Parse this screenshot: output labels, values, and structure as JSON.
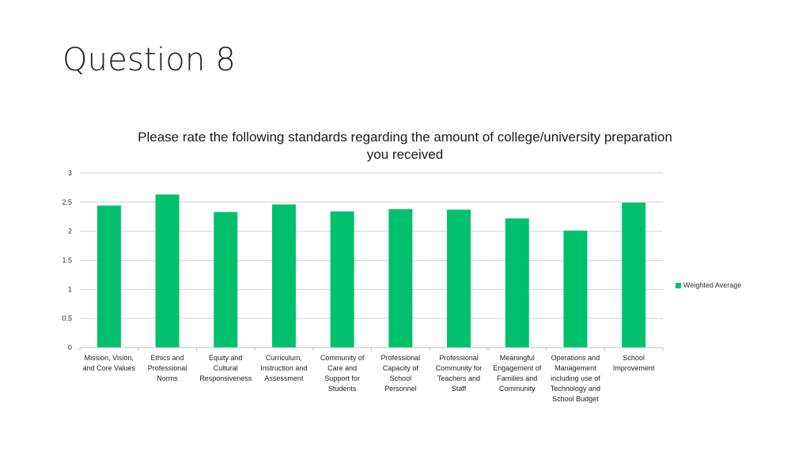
{
  "slide": {
    "title": "Question 8"
  },
  "chart_data": {
    "type": "bar",
    "title": "Please rate the following standards regarding the amount of college/university preparation you received",
    "xlabel": "",
    "ylabel": "",
    "ylim": [
      0,
      3
    ],
    "yticks": [
      "0",
      "0.5",
      "1",
      "1.5",
      "2",
      "2.5",
      "3"
    ],
    "grid": true,
    "legend_position": "right",
    "bar_color": "#00c06e",
    "categories": [
      "Mission, Vision,\nand Core Values",
      "Ethics and\nProfessional\nNorms",
      "Equity and\nCultural\nResponsiveness",
      "Curriculum,\nInstruction and\nAssessment",
      "Community of\nCare and\nSupport for\nStudents",
      "Professional\nCapacity of\nSchool\nPersonnel",
      "Professional\nCommunity for\nTeachers and\nStaff",
      "Meaningful\nEngagement of\nFamilies and\nCommunity",
      "Operations and\nManagement\nincluding use of\nTechnology and\nSchool Budget",
      "School\nImprovement"
    ],
    "series": [
      {
        "name": "Weighted Average",
        "values": [
          2.44,
          2.63,
          2.33,
          2.46,
          2.34,
          2.38,
          2.37,
          2.22,
          2.01,
          2.49
        ]
      }
    ]
  }
}
